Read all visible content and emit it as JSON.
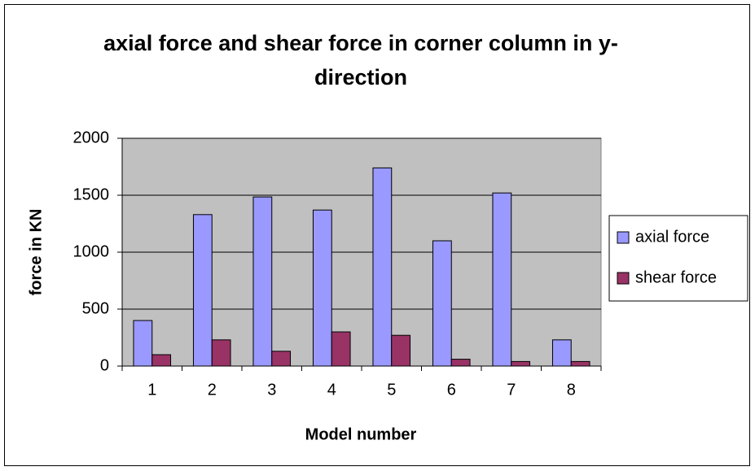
{
  "chart_data": {
    "type": "bar",
    "title": [
      "axial force and shear force in corner column in y-",
      "direction"
    ],
    "x_label": "Model number",
    "y_label": "force in KN",
    "categories": [
      "1",
      "2",
      "3",
      "4",
      "5",
      "6",
      "7",
      "8"
    ],
    "series": [
      {
        "name": "axial force",
        "color": "#9999ff",
        "values": [
          400,
          1330,
          1485,
          1370,
          1740,
          1100,
          1520,
          230
        ]
      },
      {
        "name": "shear force",
        "color": "#993366",
        "values": [
          100,
          230,
          130,
          300,
          270,
          60,
          40,
          40
        ]
      }
    ],
    "ylim": [
      0,
      2000
    ],
    "yticks": [
      0,
      500,
      1000,
      1500,
      2000
    ],
    "grid": true,
    "legend": "right",
    "plot_background": "#c0c0c0"
  }
}
